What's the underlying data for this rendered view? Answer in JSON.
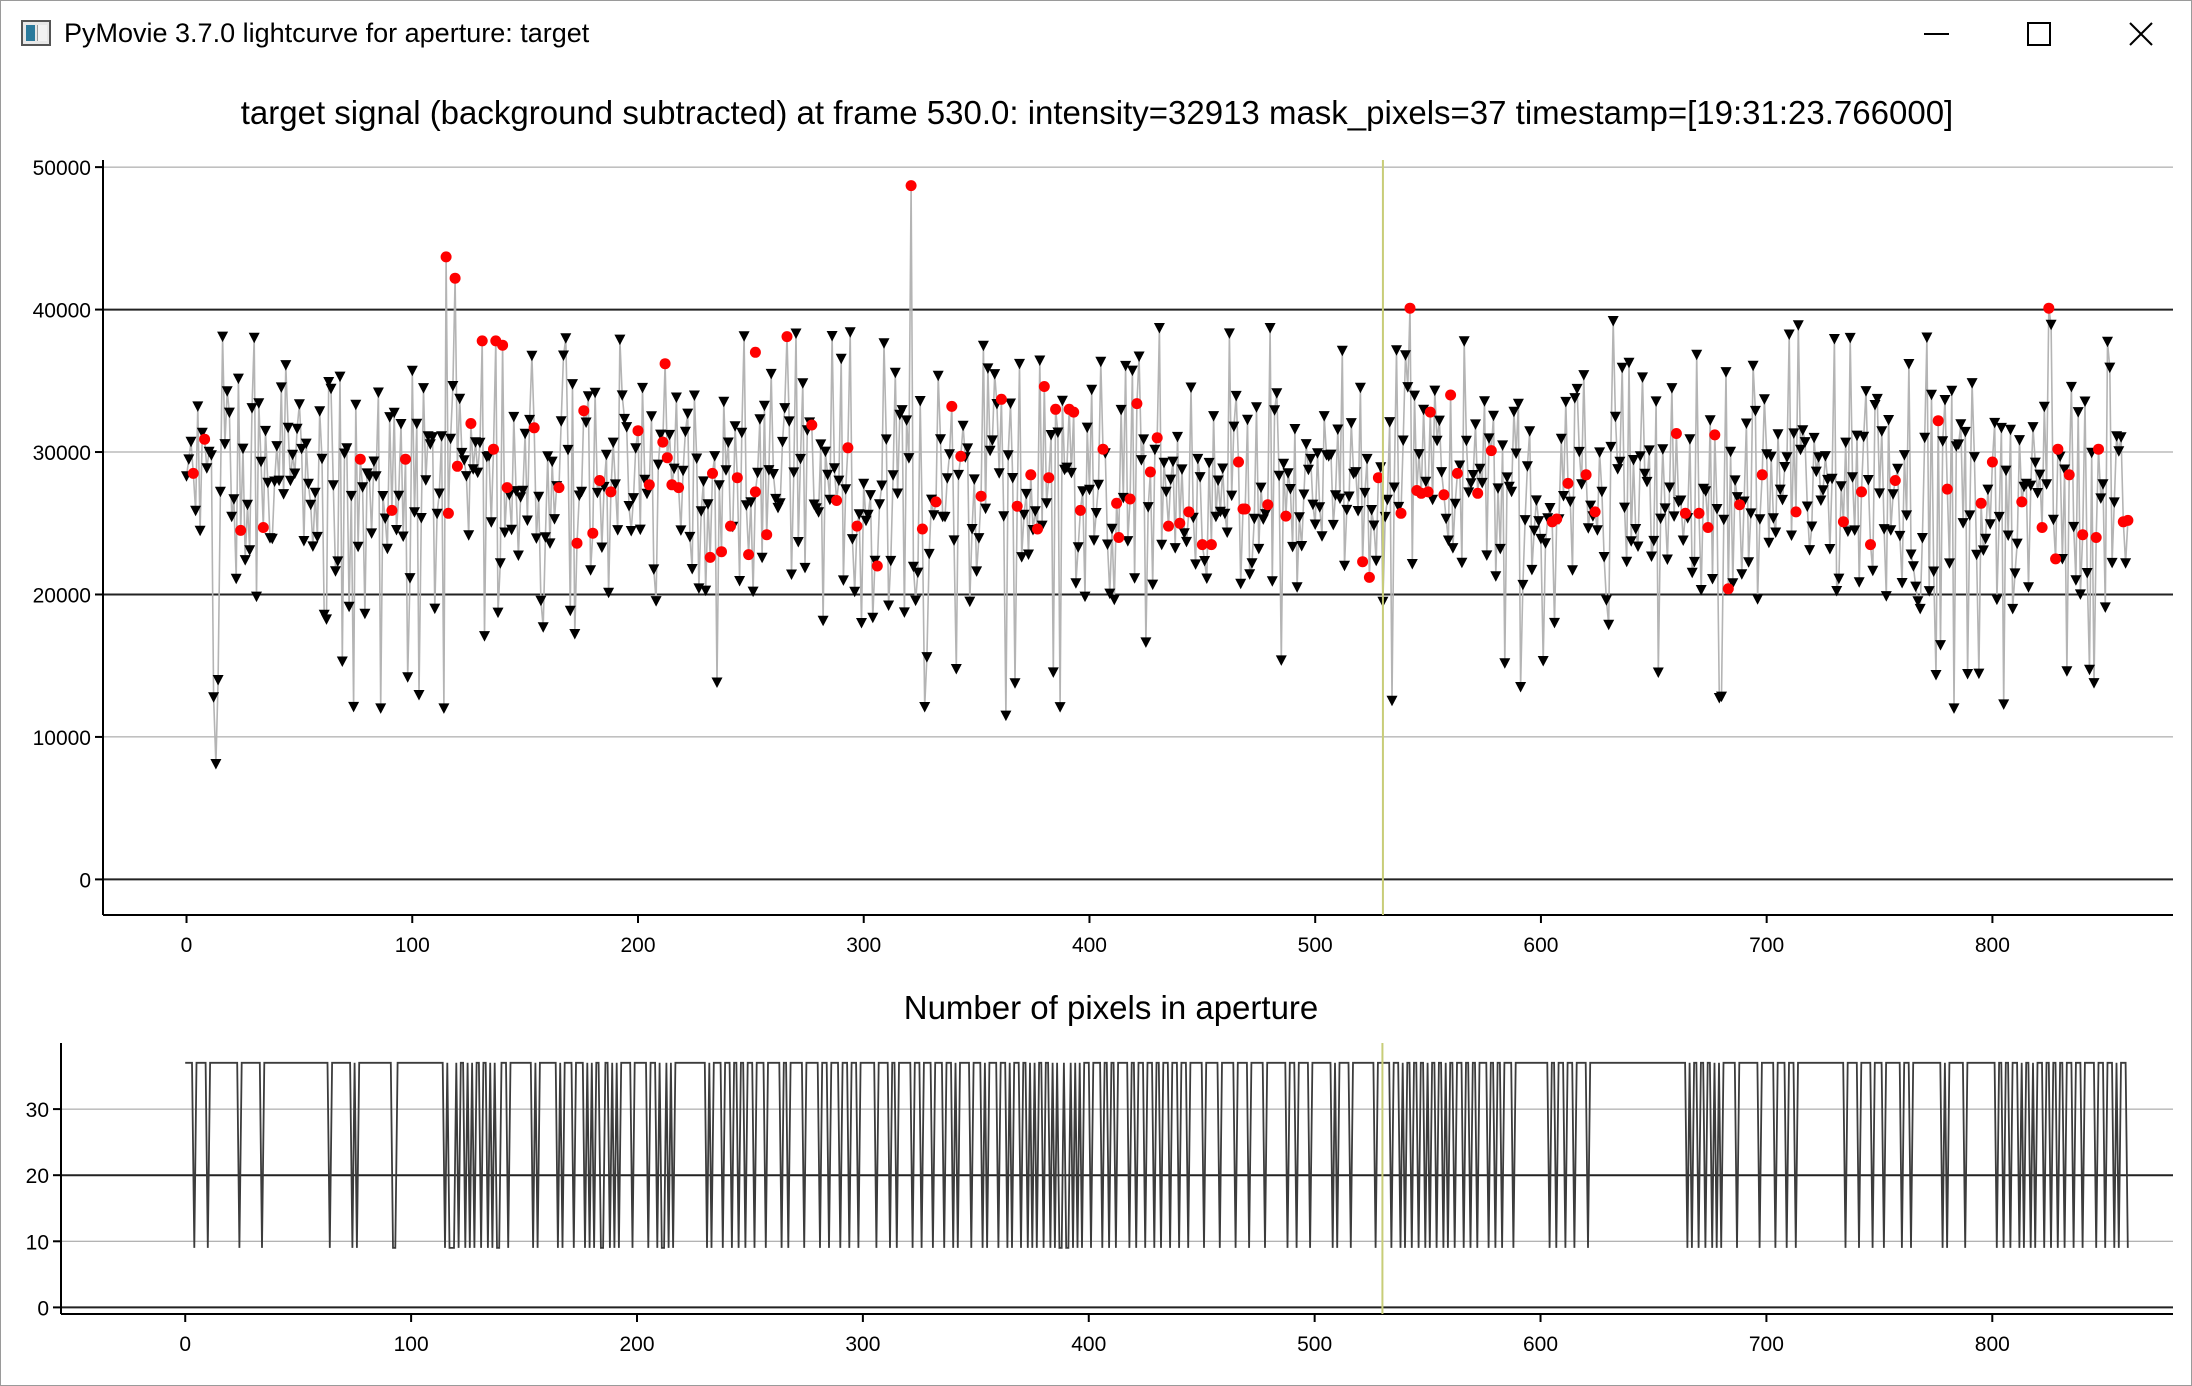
{
  "window": {
    "title": "PyMovie 3.7.0 lightcurve for aperture: target",
    "icons": {
      "app": "pymovie-app-icon",
      "minimize": "minimize-icon",
      "maximize": "maximize-icon",
      "close": "close-icon"
    }
  },
  "colors": {
    "lead": "#000000",
    "red": "#ff0000",
    "line": "#b4b4b4",
    "cursor": "#c8cd78",
    "grid": "#000000",
    "bottom_line": "#3c3c3c"
  },
  "top_plot": {
    "title": "target signal (background subtracted) at frame 530.0: intensity=32913 mask_pixels=37 timestamp=[19:31:23.766000]",
    "xlim": [
      -37,
      880
    ],
    "ylim": [
      -2500,
      50500
    ],
    "xticks": [
      0,
      100,
      200,
      300,
      400,
      500,
      600,
      700,
      800
    ],
    "xtick_labels": [
      "0",
      "100",
      "200",
      "300",
      "400",
      "500",
      "600",
      "700",
      "800"
    ],
    "yticks": [
      0,
      10000,
      20000,
      30000,
      40000,
      50000
    ],
    "ytick_labels": [
      "0",
      "10000",
      "20000",
      "30000",
      "40000",
      "50000"
    ],
    "major_grid_y": [
      0,
      20000,
      40000
    ],
    "minor_grid_y": [
      10000,
      30000,
      50000
    ],
    "cursor_frame": 530
  },
  "bottom_plot": {
    "title": "Number of pixels in aperture",
    "xlim": [
      -55,
      880
    ],
    "ylim": [
      -1,
      40
    ],
    "xticks": [
      0,
      100,
      200,
      300,
      400,
      500,
      600,
      700,
      800
    ],
    "xtick_labels": [
      "0",
      "100",
      "200",
      "300",
      "400",
      "500",
      "600",
      "700",
      "800"
    ],
    "yticks": [
      0,
      10,
      20,
      30
    ],
    "ytick_labels": [
      "0",
      "10",
      "20",
      "30"
    ],
    "major_grid_y": [
      0,
      20
    ],
    "minor_grid_y": [
      10,
      30
    ],
    "cursor_frame": 530
  },
  "chart_data": [
    {
      "type": "scatter",
      "title": "target signal (background subtracted) at frame 530.0: intensity=32913 mask_pixels=37 timestamp=[19:31:23.766000]",
      "xlim": [
        -37,
        880
      ],
      "ylim": [
        -2500,
        50500
      ],
      "grid": true,
      "series": [
        {
          "marker": "black-down-triangle",
          "connected": true,
          "x_range": [
            0,
            860
          ],
          "color": "#000000"
        },
        {
          "marker": "red-dot",
          "color": "#ff0000",
          "x": [
            3,
            8,
            24,
            34,
            77,
            91,
            97,
            115,
            116,
            119,
            120,
            126,
            131,
            136,
            137,
            140,
            142,
            154,
            165,
            173,
            176,
            180,
            183,
            188,
            200,
            205,
            211,
            212,
            213,
            215,
            218,
            232,
            233,
            237,
            241,
            244,
            249,
            252,
            252,
            257,
            266,
            277,
            288,
            293,
            297,
            306,
            321,
            326,
            332,
            339,
            343,
            352,
            361,
            368,
            374,
            377,
            380,
            382,
            385,
            391,
            393,
            396,
            406,
            412,
            413,
            418,
            421,
            427,
            430,
            435,
            440,
            444,
            450,
            454,
            466,
            468,
            469,
            479,
            487,
            521,
            524,
            528,
            538,
            542,
            545,
            547,
            550,
            551,
            557,
            560,
            563,
            572,
            578,
            605,
            607,
            612,
            620,
            624,
            660,
            664,
            670,
            674,
            677,
            683,
            688,
            698,
            713,
            734,
            742,
            746,
            757,
            776,
            780,
            795,
            800,
            813,
            822,
            825,
            828,
            829,
            834,
            840,
            846,
            847,
            858,
            860
          ],
          "y": [
            28500,
            30900,
            24500,
            24700,
            29500,
            25900,
            29500,
            43700,
            25700,
            42200,
            29000,
            32000,
            37800,
            30200,
            37800,
            37500,
            27500,
            31700,
            27500,
            23600,
            32900,
            24300,
            28000,
            27200,
            31500,
            27700,
            30700,
            36200,
            29600,
            27700,
            27500,
            22600,
            28500,
            23000,
            24800,
            28200,
            22800,
            37000,
            27200,
            24200,
            38100,
            31900,
            26600,
            30300,
            24800,
            22000,
            48700,
            24600,
            26500,
            33200,
            29700,
            26900,
            33700,
            26200,
            28400,
            24600,
            34600,
            28200,
            33000,
            33000,
            32800,
            25900,
            30200,
            26400,
            24000,
            26700,
            33400,
            28600,
            31000,
            24800,
            25000,
            25800,
            23500,
            23500,
            29300,
            26000,
            26000,
            26300,
            25500,
            22300,
            21200,
            28200,
            25700,
            40100,
            27300,
            27100,
            27200,
            32800,
            27000,
            34000,
            28500,
            27100,
            30100,
            25100,
            25300,
            27800,
            28400,
            25800,
            31300,
            25700,
            25700,
            24700,
            31200,
            20400,
            26300,
            28400,
            25800,
            25100,
            27200,
            23500,
            28000,
            32200,
            27400,
            26400,
            29300,
            26500,
            24700,
            40100,
            22500,
            30200,
            28400,
            24200,
            24000,
            30200,
            25100,
            25200
          ]
        }
      ]
    },
    {
      "type": "line",
      "title": "Number of pixels in aperture",
      "xlim": [
        -55,
        880
      ],
      "ylim": [
        -1,
        40
      ],
      "grid": true,
      "series": [
        {
          "color": "#3c3c3c",
          "levels": [
            37,
            9
          ],
          "dip_frames": [
            4,
            10,
            24,
            34,
            64,
            74,
            76,
            92,
            93,
            115,
            117,
            118,
            119,
            121,
            124,
            126,
            128,
            131,
            134,
            136,
            138,
            139,
            143,
            154,
            156,
            165,
            167,
            172,
            177,
            179,
            181,
            184,
            185,
            188,
            190,
            192,
            198,
            205,
            209,
            211,
            212,
            214,
            216,
            231,
            233,
            238,
            242,
            245,
            248,
            252,
            257,
            264,
            267,
            274,
            281,
            285,
            290,
            294,
            298,
            306,
            312,
            315,
            322,
            326,
            331,
            336,
            340,
            342,
            348,
            353,
            355,
            360,
            364,
            366,
            370,
            373,
            375,
            377,
            380,
            383,
            385,
            387,
            388,
            390,
            391,
            393,
            395,
            397,
            401,
            406,
            409,
            412,
            418,
            421,
            425,
            429,
            432,
            436,
            440,
            444,
            451,
            458,
            465,
            471,
            478,
            488,
            492,
            498,
            508,
            510,
            516,
            527,
            534,
            538,
            540,
            543,
            546,
            549,
            551,
            554,
            557,
            559,
            562,
            566,
            569,
            572,
            577,
            580,
            583,
            588,
            604,
            607,
            611,
            615,
            621,
            665,
            667,
            670,
            673,
            676,
            678,
            680,
            687,
            697,
            704,
            709,
            713,
            735,
            741,
            747,
            752,
            760,
            764,
            778,
            780,
            788,
            802,
            805,
            808,
            812,
            814,
            817,
            819,
            823,
            826,
            829,
            832,
            836,
            840,
            846,
            850,
            854,
            856,
            860
          ]
        }
      ]
    }
  ]
}
